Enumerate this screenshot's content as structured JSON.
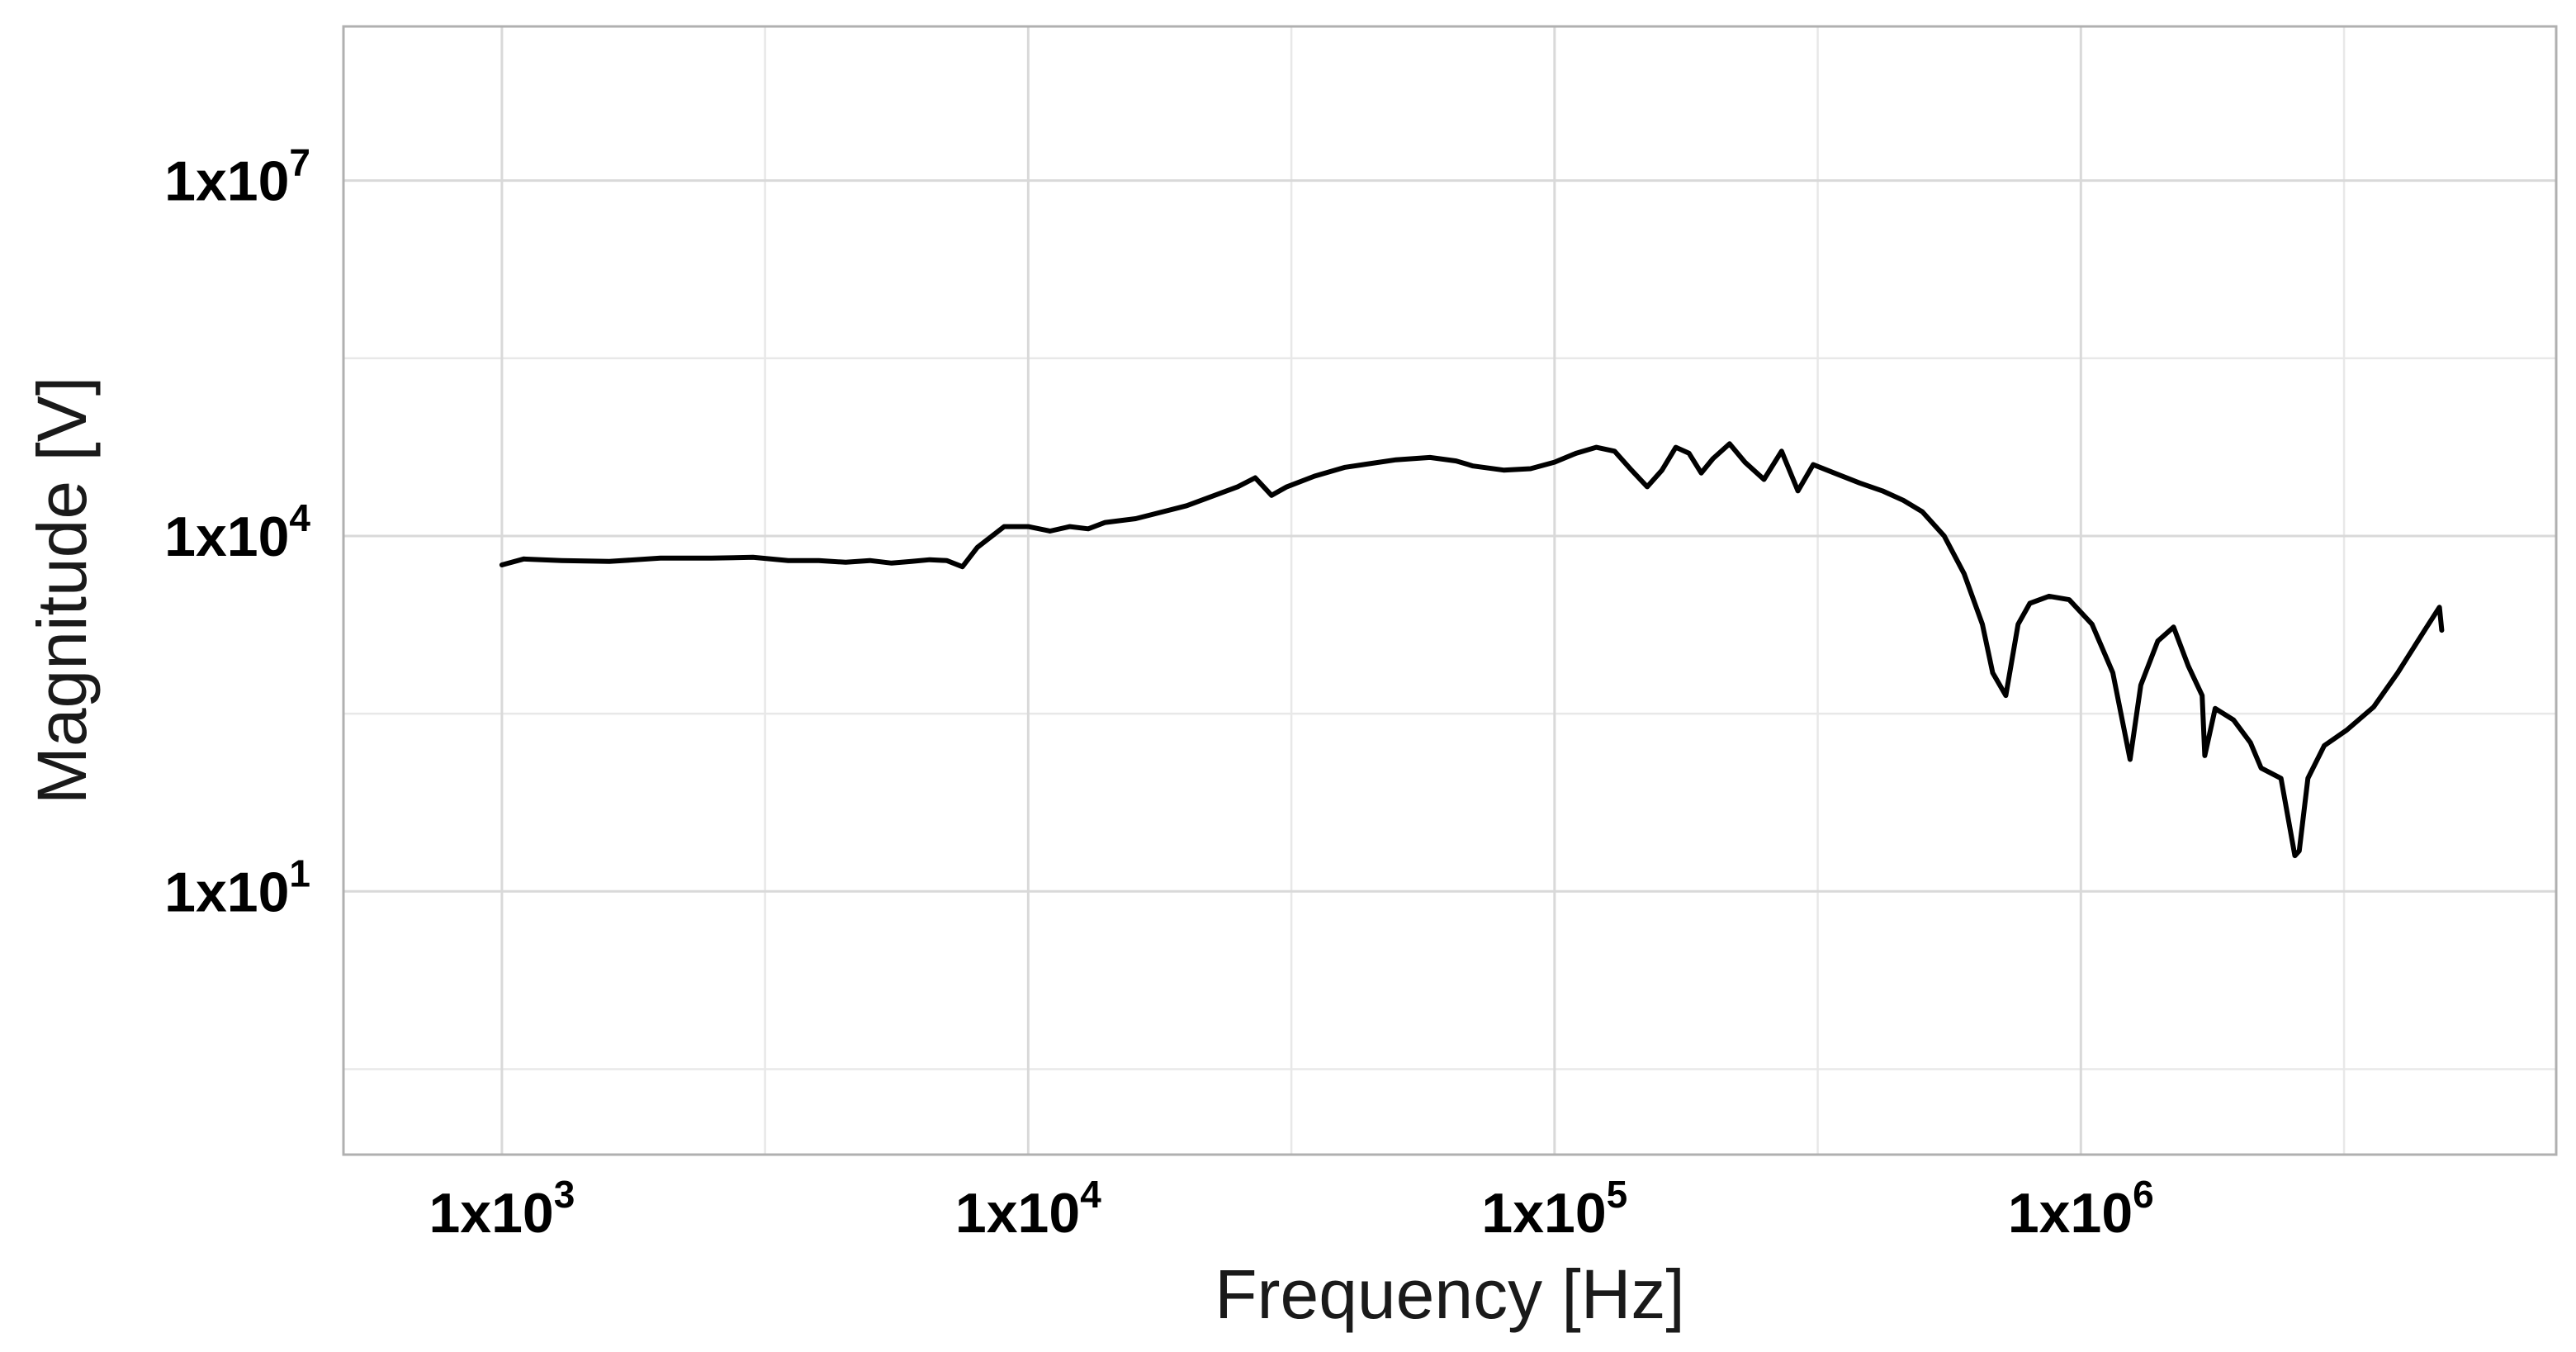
{
  "chart_data": {
    "type": "line",
    "title": "",
    "xlabel": "Frequency [Hz]",
    "ylabel": "Magnitude [V]",
    "x_scale": "log",
    "y_scale": "log",
    "xlim": [
      500,
      8000000
    ],
    "ylim": [
      0.06,
      200000000
    ],
    "x_ticks": [
      {
        "value": 1000,
        "base": "1x10",
        "exp": "3"
      },
      {
        "value": 10000,
        "base": "1x10",
        "exp": "4"
      },
      {
        "value": 100000,
        "base": "1x10",
        "exp": "5"
      },
      {
        "value": 1000000,
        "base": "1x10",
        "exp": "6"
      }
    ],
    "y_ticks": [
      {
        "value": 10,
        "base": "1x10",
        "exp": "1"
      },
      {
        "value": 10000,
        "base": "1x10",
        "exp": "4"
      },
      {
        "value": 10000000,
        "base": "1x10",
        "exp": "7"
      }
    ],
    "x_minor_grid": [
      3162,
      31623,
      316228,
      3162278
    ],
    "y_minor_grid": [
      0.316,
      316,
      316228
    ],
    "grid": true,
    "legend": "none",
    "series": [
      {
        "color": "#000000",
        "points": [
          [
            1000,
            5700
          ],
          [
            1100,
            6400
          ],
          [
            1300,
            6200
          ],
          [
            1600,
            6100
          ],
          [
            2000,
            6500
          ],
          [
            2500,
            6500
          ],
          [
            3000,
            6600
          ],
          [
            3500,
            6200
          ],
          [
            4000,
            6200
          ],
          [
            4500,
            6000
          ],
          [
            5000,
            6200
          ],
          [
            5500,
            5900
          ],
          [
            6000,
            6100
          ],
          [
            6500,
            6300
          ],
          [
            7000,
            6200
          ],
          [
            7500,
            5500
          ],
          [
            8000,
            8000
          ],
          [
            9000,
            12000
          ],
          [
            10000,
            12000
          ],
          [
            11000,
            11000
          ],
          [
            12000,
            12000
          ],
          [
            13000,
            11500
          ],
          [
            14000,
            13000
          ],
          [
            16000,
            14000
          ],
          [
            20000,
            18000
          ],
          [
            25000,
            26000
          ],
          [
            27000,
            31000
          ],
          [
            29000,
            22000
          ],
          [
            31000,
            26000
          ],
          [
            35000,
            32000
          ],
          [
            40000,
            38000
          ],
          [
            50000,
            44000
          ],
          [
            58000,
            46000
          ],
          [
            65000,
            43000
          ],
          [
            70000,
            39000
          ],
          [
            80000,
            36000
          ],
          [
            90000,
            37000
          ],
          [
            100000,
            42000
          ],
          [
            110000,
            50000
          ],
          [
            120000,
            56000
          ],
          [
            130000,
            52000
          ],
          [
            140000,
            36000
          ],
          [
            150000,
            26000
          ],
          [
            160000,
            36000
          ],
          [
            170000,
            56000
          ],
          [
            180000,
            50000
          ],
          [
            190000,
            34000
          ],
          [
            200000,
            45000
          ],
          [
            215000,
            60000
          ],
          [
            230000,
            42000
          ],
          [
            250000,
            30000
          ],
          [
            270000,
            52000
          ],
          [
            290000,
            24000
          ],
          [
            310000,
            40000
          ],
          [
            340000,
            34000
          ],
          [
            380000,
            28000
          ],
          [
            420000,
            24000
          ],
          [
            460000,
            20000
          ],
          [
            500000,
            16000
          ],
          [
            550000,
            10000
          ],
          [
            600000,
            4800
          ],
          [
            650000,
            1800
          ],
          [
            680000,
            700
          ],
          [
            720000,
            450
          ],
          [
            760000,
            1800
          ],
          [
            800000,
            2700
          ],
          [
            870000,
            3100
          ],
          [
            950000,
            2900
          ],
          [
            1050000,
            1800
          ],
          [
            1150000,
            700
          ],
          [
            1240000,
            130
          ],
          [
            1300000,
            550
          ],
          [
            1400000,
            1300
          ],
          [
            1500000,
            1700
          ],
          [
            1600000,
            800
          ],
          [
            1700000,
            450
          ],
          [
            1720000,
            140
          ],
          [
            1800000,
            350
          ],
          [
            1950000,
            280
          ],
          [
            2100000,
            180
          ],
          [
            2200000,
            110
          ],
          [
            2400000,
            90
          ],
          [
            2550000,
            20
          ],
          [
            2600000,
            22
          ],
          [
            2700000,
            90
          ],
          [
            2900000,
            170
          ],
          [
            3200000,
            230
          ],
          [
            3600000,
            360
          ],
          [
            4000000,
            700
          ],
          [
            4500000,
            1600
          ],
          [
            4800000,
            2500
          ],
          [
            4850000,
            1600
          ]
        ]
      }
    ]
  }
}
